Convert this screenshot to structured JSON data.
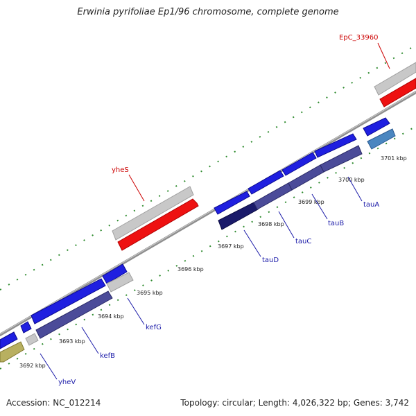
{
  "title": "Erwinia pyrifoliae Ep1/96 chromosome, complete genome",
  "footer": {
    "accession": "Accession: NC_012214",
    "summary": "Topology: circular; Length: 4,026,322 bp; Genes: 3,742"
  },
  "colors": {
    "axis_gray": "#9a9a9a",
    "tick_green": "#2e8b2e",
    "blue_gene": "#1f1fe0",
    "purple_cds": "#4b4b99",
    "navy_cds": "#1a1a6a",
    "gray_gene": "#c8c8c8",
    "red_gene": "#ee1111",
    "olive": "#b8b060",
    "steel": "#4a86c0",
    "label_red": "#cc0000",
    "label_blue": "#1a1aa8"
  },
  "ticks": [
    {
      "label": "3692 kbp"
    },
    {
      "label": "3693 kbp"
    },
    {
      "label": "3694 kbp"
    },
    {
      "label": "3695 kbp"
    },
    {
      "label": "3696 kbp"
    },
    {
      "label": "3697 kbp"
    },
    {
      "label": "3698 kbp"
    },
    {
      "label": "3699 kbp"
    },
    {
      "label": "3700 kbp"
    },
    {
      "label": "3701 kbp"
    }
  ],
  "gene_labels": [
    {
      "name": "yheS",
      "kind": "top"
    },
    {
      "name": "EpC_33960",
      "kind": "top"
    },
    {
      "name": "yheV",
      "kind": "bottom"
    },
    {
      "name": "kefB",
      "kind": "bottom"
    },
    {
      "name": "kefG",
      "kind": "bottom"
    },
    {
      "name": "tauD",
      "kind": "bottom"
    },
    {
      "name": "tauC",
      "kind": "bottom"
    },
    {
      "name": "tauB",
      "kind": "bottom"
    },
    {
      "name": "tauA",
      "kind": "bottom"
    }
  ]
}
